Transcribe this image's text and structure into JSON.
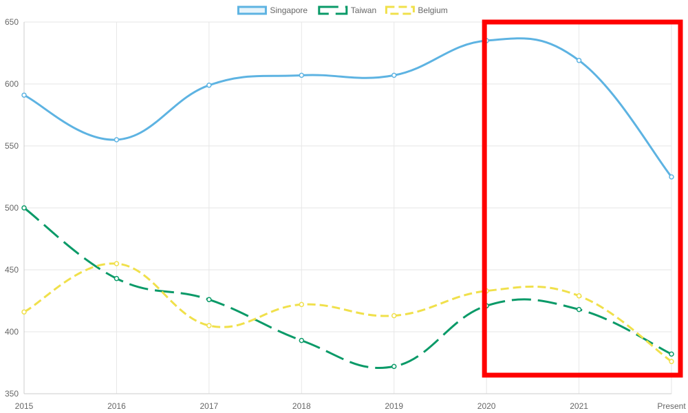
{
  "chart_data": {
    "type": "line",
    "categories": [
      "2015",
      "2016",
      "2017",
      "2018",
      "2019",
      "2020",
      "2021",
      "Present"
    ],
    "ylim": [
      350,
      650
    ],
    "yticks": [
      350,
      400,
      450,
      500,
      550,
      600,
      650
    ],
    "grid": true,
    "legend_position": "top",
    "series": [
      {
        "name": "Singapore",
        "values": [
          591,
          555,
          599,
          607,
          607,
          635,
          619,
          525
        ],
        "color": "#5DB3E2",
        "dash": "solid"
      },
      {
        "name": "Taiwan",
        "values": [
          500,
          443,
          426,
          393,
          372,
          421,
          418,
          382
        ],
        "color": "#0A9A68",
        "dash": "long-dash"
      },
      {
        "name": "Belgium",
        "values": [
          416,
          455,
          405,
          422,
          413,
          433,
          429,
          376
        ],
        "color": "#F0E04B",
        "dash": "short-dash"
      }
    ],
    "highlight": {
      "type": "rectangle",
      "x_range": [
        "2020",
        "Present"
      ],
      "y_range": [
        365,
        650
      ],
      "color": "#FF0000"
    }
  }
}
